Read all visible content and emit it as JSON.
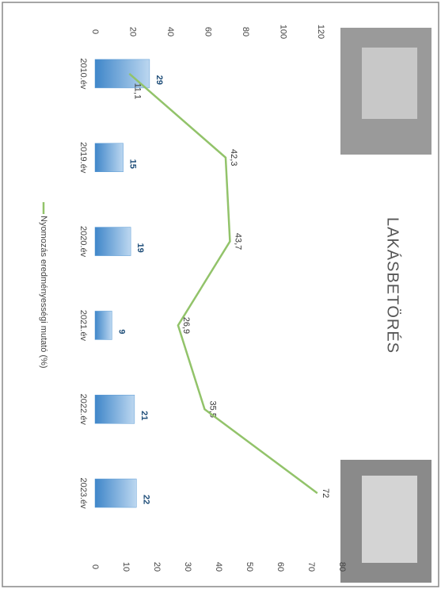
{
  "chart_data": {
    "type": "bar",
    "title": "LAKÁSBETÖRÉS",
    "categories": [
      "2010.év",
      "2019.év",
      "2020.év",
      "2021.év",
      "2022.év",
      "2023.év"
    ],
    "series": [
      {
        "type": "bar",
        "color": "#5b9bd5",
        "values": [
          29,
          15,
          19,
          9,
          21,
          22
        ]
      },
      {
        "type": "line",
        "name": "Nyomozás eredményességi mutató (%)",
        "color": "#92c36a",
        "axis": "y2",
        "values": [
          11.1,
          42.3,
          43.7,
          26.9,
          35.5,
          72
        ],
        "value_labels": [
          "11,1",
          "42,3",
          "43,7",
          "26,9",
          "35,5",
          "72"
        ]
      }
    ],
    "ylim": [
      0,
      120
    ],
    "yticks": [
      0,
      20,
      40,
      60,
      80,
      100,
      120
    ],
    "y2lim": [
      0,
      80
    ],
    "y2ticks": [
      0,
      10,
      20,
      30,
      40,
      50,
      60,
      70,
      80
    ]
  }
}
